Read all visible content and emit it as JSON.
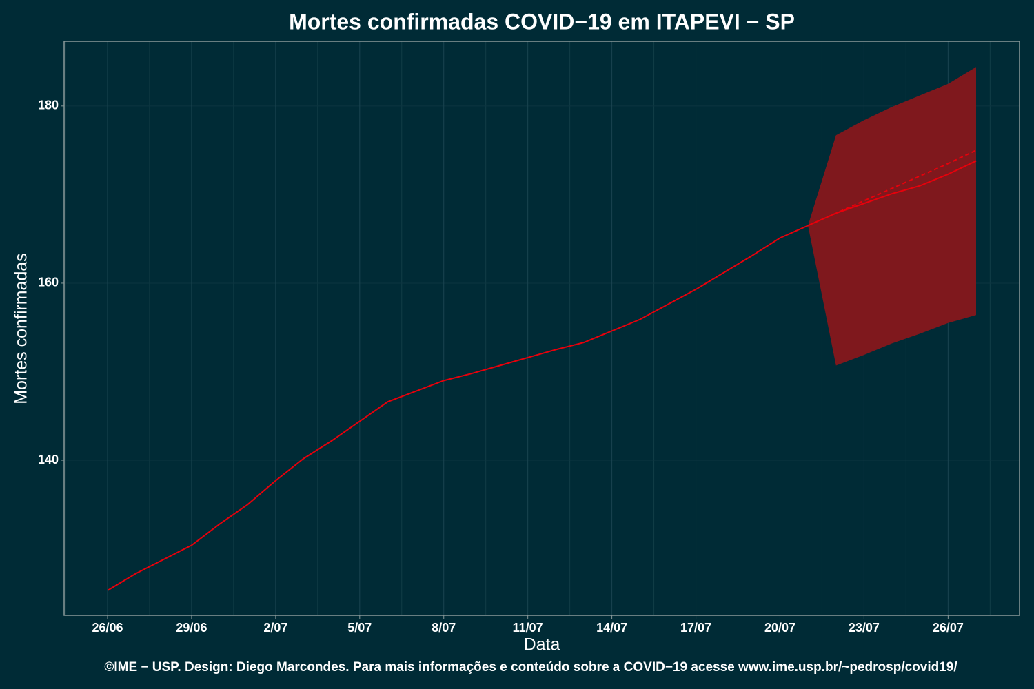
{
  "chart_data": {
    "type": "line",
    "title": "Mortes confirmadas COVID−19 em ITAPEVI − SP",
    "x_label": "Data",
    "y_label": "Mortes confirmadas",
    "caption": "©IME − USP. Design: Diego Marcondes. Para mais informações e conteúdo sobre a COVID−19 acesse www.ime.usp.br/~pedrosp/covid19/",
    "categories": [
      "26/06",
      null,
      null,
      "29/06",
      null,
      null,
      "2/07",
      null,
      null,
      "5/07",
      null,
      null,
      "8/07",
      null,
      null,
      "11/07",
      null,
      null,
      "14/07",
      null,
      null,
      "17/07",
      null,
      null,
      "20/07",
      null,
      null,
      "23/07",
      null,
      null,
      "26/07",
      null
    ],
    "series": [
      {
        "color": "#e8000b",
        "dash": false,
        "values": [
          125.3,
          127.2,
          128.8,
          130.4,
          132.8,
          135.0,
          137.7,
          140.2,
          142.2,
          144.4,
          146.6,
          147.8,
          149.0,
          149.8,
          150.7,
          151.6,
          152.5,
          153.3,
          154.6,
          155.9,
          157.6,
          159.3,
          161.2,
          163.1,
          165.1,
          166.5,
          167.9,
          169.0,
          170.1,
          171.0,
          172.3,
          173.8
        ]
      },
      {
        "color": "#e8000b",
        "dash": true,
        "values": [
          null,
          null,
          null,
          null,
          null,
          null,
          null,
          null,
          null,
          null,
          null,
          null,
          null,
          null,
          null,
          null,
          null,
          null,
          null,
          null,
          null,
          null,
          null,
          null,
          null,
          166.5,
          167.9,
          169.3,
          170.7,
          172.1,
          173.5,
          175.0
        ]
      }
    ],
    "band": {
      "color": "#7f181d",
      "upper": [
        null,
        null,
        null,
        null,
        null,
        null,
        null,
        null,
        null,
        null,
        null,
        null,
        null,
        null,
        null,
        null,
        null,
        null,
        null,
        null,
        null,
        null,
        null,
        null,
        null,
        166.5,
        176.7,
        178.4,
        179.9,
        181.2,
        182.5,
        184.4
      ],
      "lower": [
        null,
        null,
        null,
        null,
        null,
        null,
        null,
        null,
        null,
        null,
        null,
        null,
        null,
        null,
        null,
        null,
        null,
        null,
        null,
        null,
        null,
        null,
        null,
        null,
        null,
        166.5,
        150.7,
        151.9,
        153.2,
        154.3,
        155.5,
        156.4
      ]
    },
    "ylim": [
      122.5,
      187.3
    ],
    "yticks": [
      140,
      160,
      180
    ],
    "grid": true
  }
}
